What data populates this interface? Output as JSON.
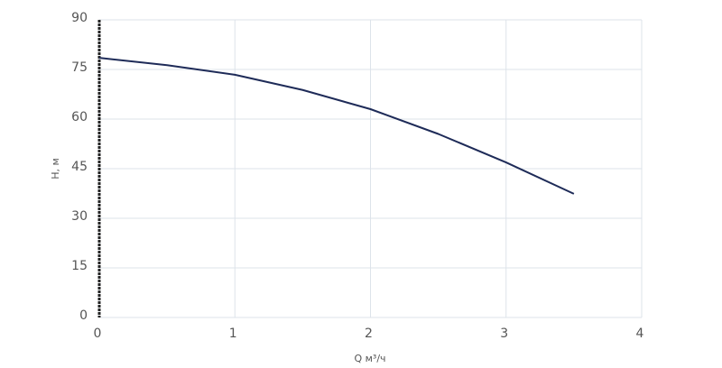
{
  "chart_data": {
    "type": "line",
    "x_label": "Q м³/ч",
    "y_label": "H, м",
    "x": [
      0,
      0.5,
      1,
      1.5,
      2,
      2.5,
      3,
      3.5
    ],
    "series": [
      {
        "name": "H",
        "color": "#1e2b58",
        "values": [
          78.5,
          76.3,
          73.4,
          68.8,
          63,
          55.5,
          46.9,
          37.4
        ]
      }
    ],
    "xlim": [
      0,
      4
    ],
    "xticks": [
      0,
      1,
      2,
      3,
      4
    ],
    "ylim": [
      0,
      90
    ],
    "yticks": [
      0,
      15,
      30,
      45,
      60,
      75,
      90
    ],
    "grid": true
  }
}
